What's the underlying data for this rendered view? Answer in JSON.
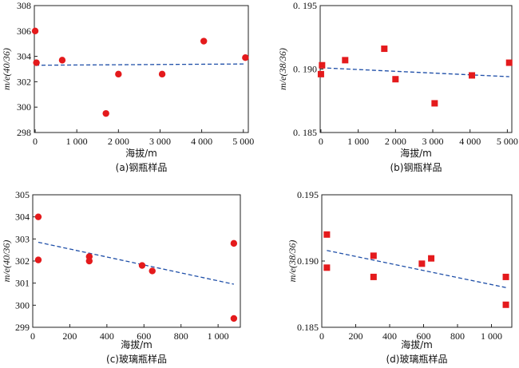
{
  "chart_data": [
    {
      "type": "scatter",
      "marker": "circle",
      "color": "#e41a1c",
      "trend_color": "#1f4fa8",
      "caption": "(a)钢瓶样品",
      "xlabel": "海拔/m",
      "ylabel": "m/e(40/36)",
      "xlim": [
        -20,
        5120
      ],
      "ylim": [
        298,
        308
      ],
      "xticks": [
        0,
        1000,
        2000,
        3000,
        4000,
        5000
      ],
      "xtick_labels": [
        "0",
        "1 000",
        "2 000",
        "3 000",
        "4 000",
        "5 000"
      ],
      "yticks": [
        298,
        300,
        302,
        304,
        306,
        308
      ],
      "ytick_labels": [
        "298",
        "300",
        "302",
        "304",
        "306",
        "308"
      ],
      "points": [
        {
          "x": 0,
          "y": 306.0
        },
        {
          "x": 30,
          "y": 303.5
        },
        {
          "x": 650,
          "y": 303.7
        },
        {
          "x": 1700,
          "y": 299.5
        },
        {
          "x": 2000,
          "y": 302.6
        },
        {
          "x": 3050,
          "y": 302.6
        },
        {
          "x": 4050,
          "y": 305.2
        },
        {
          "x": 5050,
          "y": 303.9
        }
      ],
      "trend": {
        "x": [
          0,
          5050
        ],
        "y": [
          303.3,
          303.4
        ]
      }
    },
    {
      "type": "scatter",
      "marker": "square",
      "color": "#e41a1c",
      "trend_color": "#1f4fa8",
      "caption": "(b)钢瓶样品",
      "xlabel": "海拔/m",
      "ylabel": "m/e(38/36)",
      "xlim": [
        -20,
        5120
      ],
      "ylim": [
        0.185,
        0.195
      ],
      "xticks": [
        0,
        1000,
        2000,
        3000,
        4000,
        5000
      ],
      "xtick_labels": [
        "0",
        "1 000",
        "2 000",
        "3 000",
        "4 000",
        "5 000"
      ],
      "yticks": [
        0.185,
        0.19,
        0.195
      ],
      "ytick_labels": [
        "0. 185",
        "0. 190",
        "0. 195"
      ],
      "points": [
        {
          "x": 0,
          "y": 0.1896
        },
        {
          "x": 30,
          "y": 0.1903
        },
        {
          "x": 650,
          "y": 0.1907
        },
        {
          "x": 1700,
          "y": 0.1916
        },
        {
          "x": 2000,
          "y": 0.1892
        },
        {
          "x": 3050,
          "y": 0.1873
        },
        {
          "x": 4050,
          "y": 0.1895
        },
        {
          "x": 5050,
          "y": 0.1905
        }
      ],
      "trend": {
        "x": [
          0,
          5050
        ],
        "y": [
          0.1901,
          0.1894
        ]
      }
    },
    {
      "type": "scatter",
      "marker": "circle",
      "color": "#e41a1c",
      "trend_color": "#1f4fa8",
      "caption": "(c)玻璃瓶样品",
      "xlabel": "海拔/m",
      "ylabel": "m/e(40/36)",
      "xlim": [
        0,
        1120
      ],
      "ylim": [
        299,
        305
      ],
      "xticks": [
        0,
        200,
        400,
        600,
        800,
        1000
      ],
      "xtick_labels": [
        "0",
        "200",
        "400",
        "600",
        "800",
        "1 000"
      ],
      "yticks": [
        299,
        300,
        301,
        302,
        303,
        304,
        305
      ],
      "ytick_labels": [
        "299",
        "300",
        "301",
        "302",
        "303",
        "304",
        "305"
      ],
      "points": [
        {
          "x": 30,
          "y": 304.0
        },
        {
          "x": 30,
          "y": 302.05
        },
        {
          "x": 305,
          "y": 302.2
        },
        {
          "x": 305,
          "y": 302.0
        },
        {
          "x": 590,
          "y": 301.8
        },
        {
          "x": 645,
          "y": 301.55
        },
        {
          "x": 1085,
          "y": 302.8
        },
        {
          "x": 1085,
          "y": 299.4
        }
      ],
      "trend": {
        "x": [
          30,
          1085
        ],
        "y": [
          302.85,
          300.95
        ]
      }
    },
    {
      "type": "scatter",
      "marker": "square",
      "color": "#e41a1c",
      "trend_color": "#1f4fa8",
      "caption": "(d)玻璃瓶样品",
      "xlabel": "海拔/m",
      "ylabel": "m/e(38/36)",
      "xlim": [
        0,
        1120
      ],
      "ylim": [
        0.185,
        0.195
      ],
      "xticks": [
        0,
        200,
        400,
        600,
        800,
        1000
      ],
      "xtick_labels": [
        "0",
        "200",
        "400",
        "600",
        "800",
        "1 000"
      ],
      "yticks": [
        0.185,
        0.19,
        0.195
      ],
      "ytick_labels": [
        "0.185",
        "0.190",
        "0.195"
      ],
      "points": [
        {
          "x": 30,
          "y": 0.192
        },
        {
          "x": 30,
          "y": 0.1895
        },
        {
          "x": 305,
          "y": 0.1904
        },
        {
          "x": 305,
          "y": 0.1888
        },
        {
          "x": 590,
          "y": 0.1898
        },
        {
          "x": 645,
          "y": 0.1902
        },
        {
          "x": 1085,
          "y": 0.1888
        },
        {
          "x": 1085,
          "y": 0.1867
        }
      ],
      "trend": {
        "x": [
          30,
          1085
        ],
        "y": [
          0.1908,
          0.188
        ]
      }
    }
  ]
}
